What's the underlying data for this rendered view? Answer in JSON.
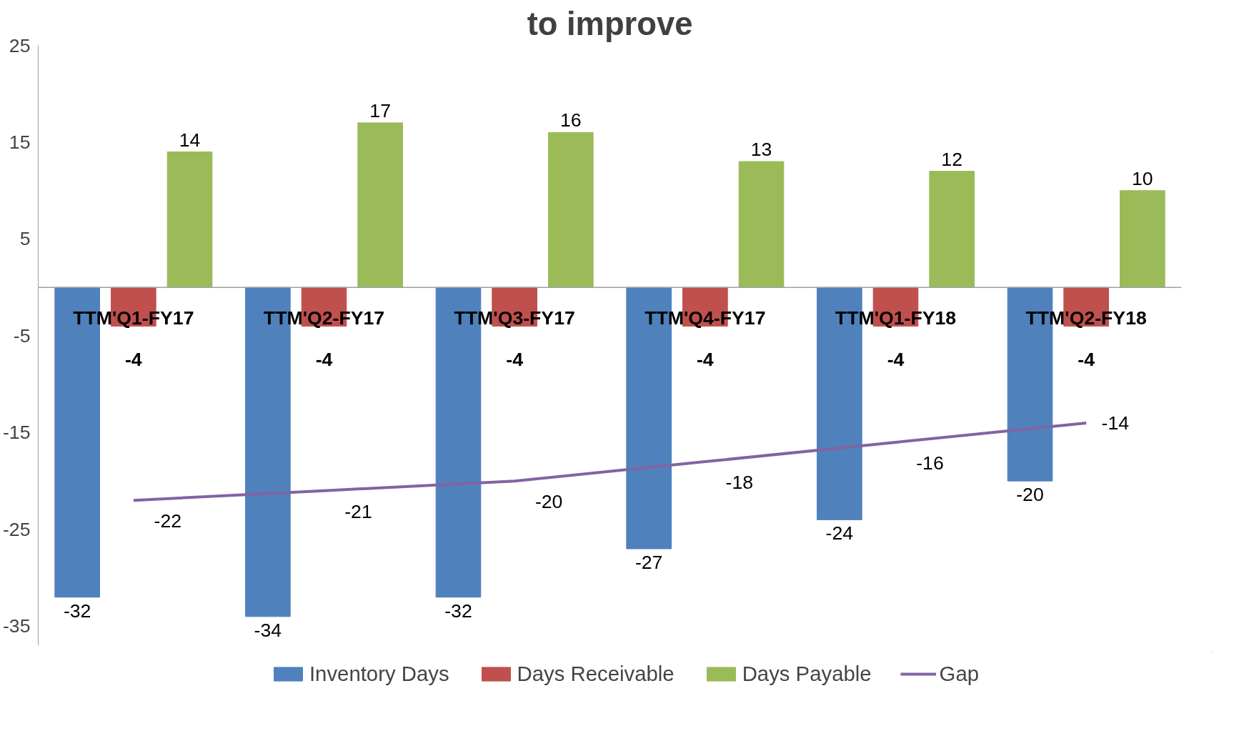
{
  "chart_data": {
    "type": "bar",
    "title": "to improve",
    "categories": [
      "TTM'Q1-FY17",
      "TTM'Q2-FY17",
      "TTM'Q3-FY17",
      "TTM'Q4-FY17",
      "TTM'Q1-FY18",
      "TTM'Q2-FY18"
    ],
    "series": [
      {
        "name": "Inventory Days",
        "color": "#4f81bd",
        "values": [
          -32,
          -34,
          -32,
          -27,
          -24,
          -20
        ]
      },
      {
        "name": "Days Receivable",
        "color": "#c0504d",
        "values": [
          -4,
          -4,
          -4,
          -4,
          -4,
          -4
        ]
      },
      {
        "name": "Days Payable",
        "color": "#9bbb59",
        "values": [
          14,
          17,
          16,
          13,
          12,
          10
        ]
      },
      {
        "name": "Gap",
        "type": "line",
        "color": "#8064a2",
        "values": [
          -22,
          -21,
          -20,
          -18,
          -16,
          -14
        ]
      }
    ],
    "ylim": [
      -37,
      25
    ],
    "yticks": [
      -35,
      -25,
      -15,
      -5,
      5,
      15,
      25
    ],
    "data_labels": true,
    "grid": false,
    "legend": "bottom",
    "marker": "none",
    "line_style": "solid"
  }
}
